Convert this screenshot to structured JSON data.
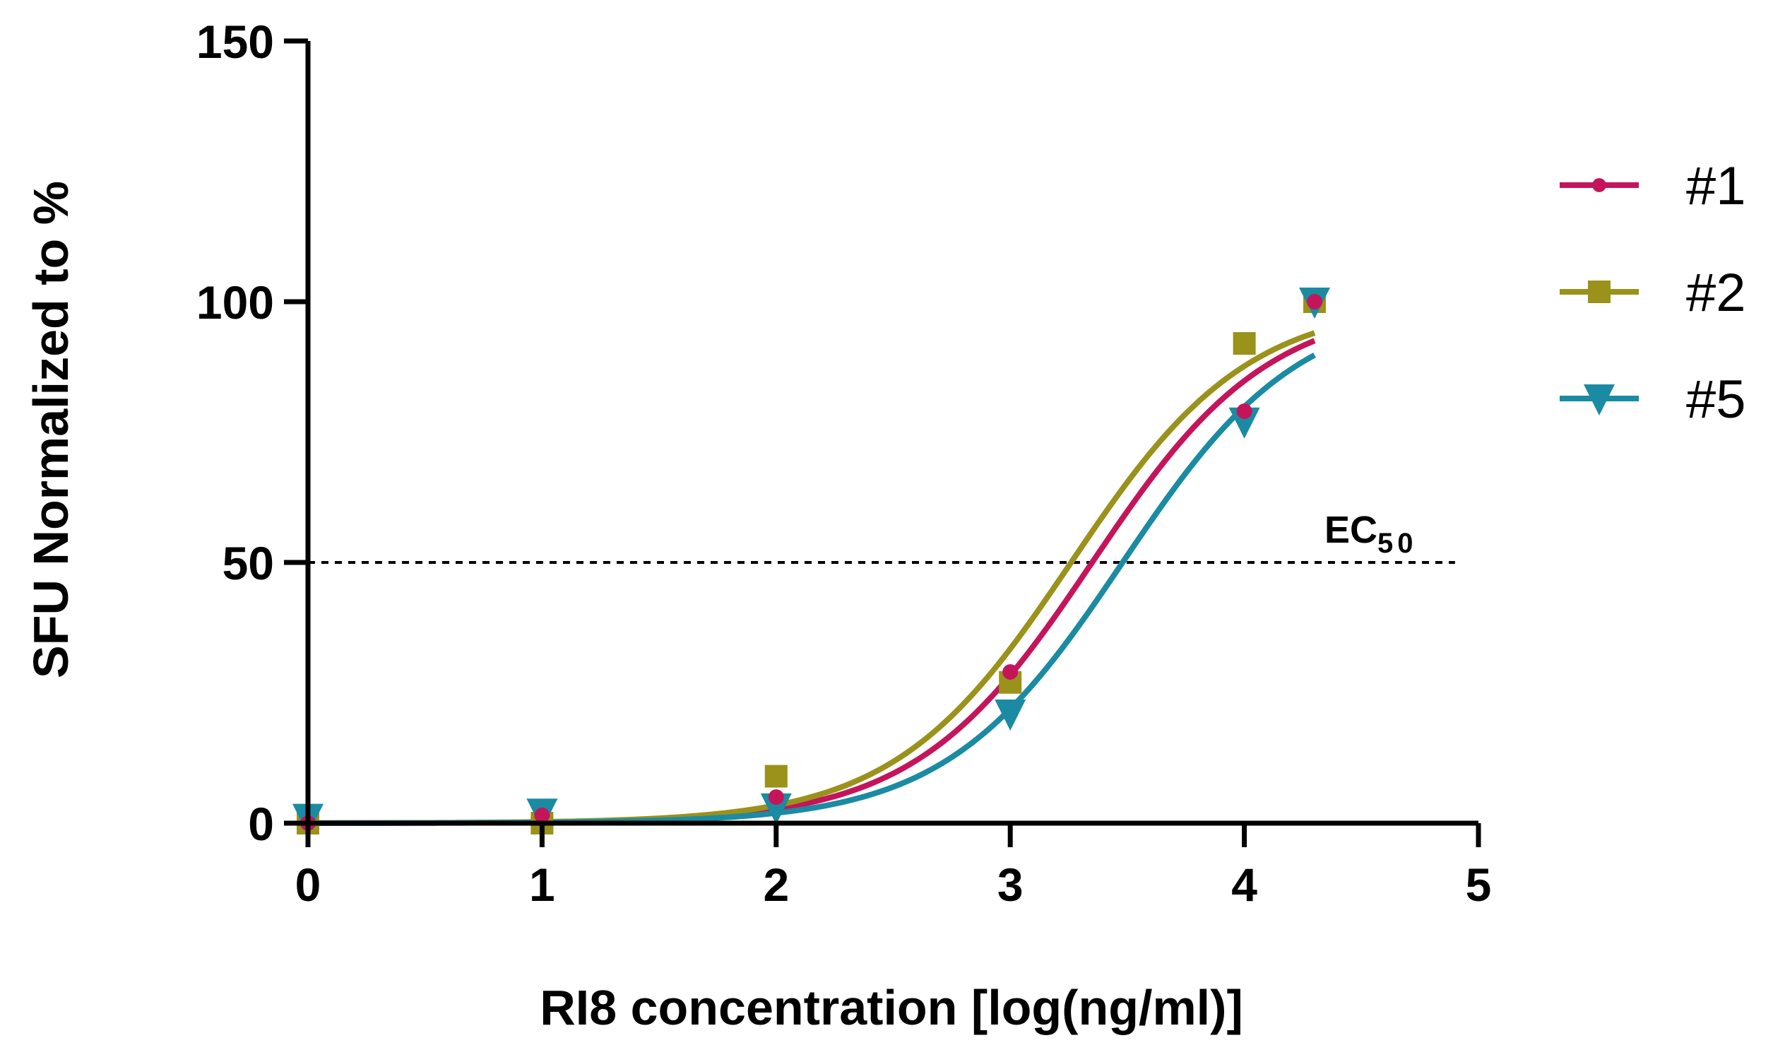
{
  "chart_data": {
    "type": "scatter",
    "title": "",
    "xlabel": "RI8 concentration [log(ng/ml)]",
    "ylabel": "SFU Normalized to %",
    "xlim": [
      0,
      5
    ],
    "ylim": [
      0,
      150
    ],
    "x_ticks": [
      "0",
      "1",
      "2",
      "3",
      "4",
      "5"
    ],
    "y_ticks": [
      "0",
      "50",
      "100",
      "150"
    ],
    "grid": false,
    "legend_position": "right",
    "reference_line": {
      "y": 50,
      "x_range": [
        0,
        4.9
      ],
      "style": "dashed",
      "label": "EC",
      "label_sub": "50"
    },
    "series": [
      {
        "name": "#1",
        "color": "#C4155B",
        "marker": "circle",
        "x": [
          0,
          1,
          2,
          3,
          4,
          4.3
        ],
        "y": [
          0,
          1.5,
          5,
          29,
          79,
          100
        ],
        "fit": {
          "bottom": 0,
          "top": 100,
          "ec50": 3.35,
          "hill": 1.15,
          "x_range": [
            0,
            4.3
          ]
        }
      },
      {
        "name": "#2",
        "color": "#9A921A",
        "marker": "square",
        "x": [
          0,
          1,
          2,
          3,
          4,
          4.3
        ],
        "y": [
          0,
          0,
          9,
          27,
          92,
          100
        ],
        "fit": {
          "bottom": 0,
          "top": 100,
          "ec50": 3.26,
          "hill": 1.15,
          "x_range": [
            0,
            4.3
          ]
        }
      },
      {
        "name": "#5",
        "color": "#1A8BA2",
        "marker": "triangle-down",
        "x": [
          0,
          1,
          2,
          3,
          4,
          4.3
        ],
        "y": [
          1,
          2,
          3,
          21,
          77,
          100
        ],
        "fit": {
          "bottom": 0,
          "top": 100,
          "ec50": 3.48,
          "hill": 1.15,
          "x_range": [
            0,
            4.3
          ]
        }
      }
    ]
  }
}
